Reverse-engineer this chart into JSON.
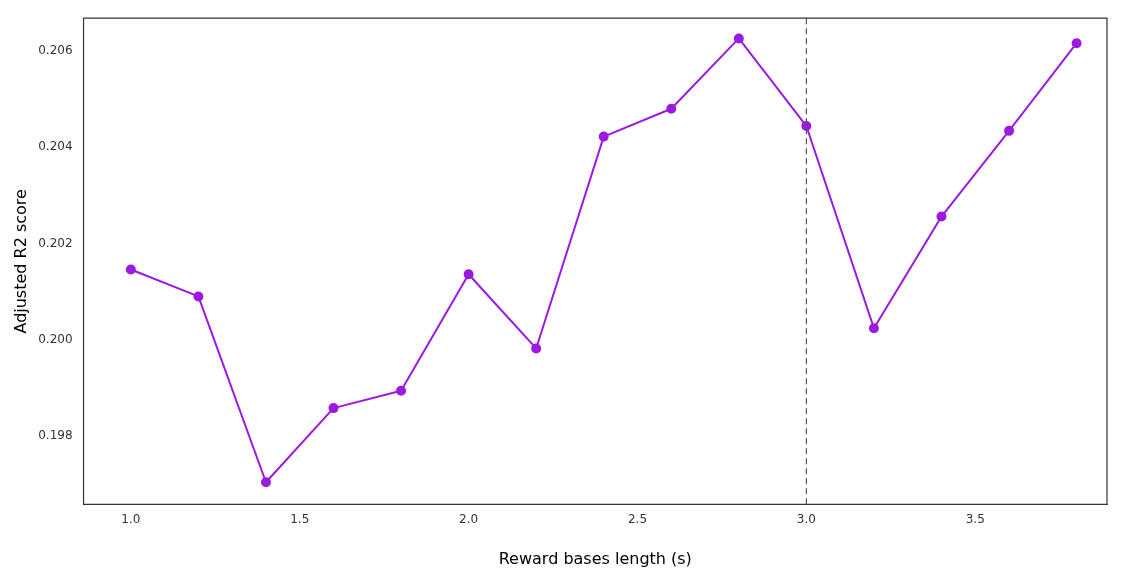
{
  "chart_data": {
    "type": "line",
    "xlabel": "Reward bases length (s)",
    "ylabel": "Adjusted R2 score",
    "x": [
      1.0,
      1.2,
      1.4,
      1.6,
      1.8,
      2.0,
      2.2,
      2.4,
      2.6,
      2.8,
      3.0,
      3.2,
      3.4,
      3.6,
      3.8
    ],
    "series": [
      {
        "color": "#9b19e0",
        "values": [
          0.20146,
          0.2009,
          0.19704,
          0.19858,
          0.19894,
          0.20136,
          0.19982,
          0.20422,
          0.2048,
          0.20626,
          0.20444,
          0.20024,
          0.20256,
          0.20434,
          0.20616
        ]
      }
    ],
    "xlim": [
      0.86,
      3.89
    ],
    "xticks": [
      {
        "value": 1,
        "label": "1.0"
      },
      1.5,
      {
        "value": 2,
        "label": "2.0"
      },
      2.5,
      {
        "value": 3,
        "label": "3.0"
      },
      3.5
    ],
    "ylim": [
      0.19658,
      0.20668
    ],
    "yticks": [
      {
        "value": 0.198,
        "label": "0.198"
      },
      {
        "value": 0.2,
        "label": "0.200"
      },
      {
        "value": 0.202,
        "label": "0.202"
      },
      {
        "value": 0.204,
        "label": "0.204"
      },
      {
        "value": 0.206,
        "label": "0.206"
      }
    ],
    "ref_lines": [
      {
        "axis": "x",
        "value": 3.0,
        "color": "#555555",
        "line_style": "dashed"
      }
    ],
    "grid": false,
    "legend": false,
    "marker": "circle",
    "line_style": "solid"
  }
}
